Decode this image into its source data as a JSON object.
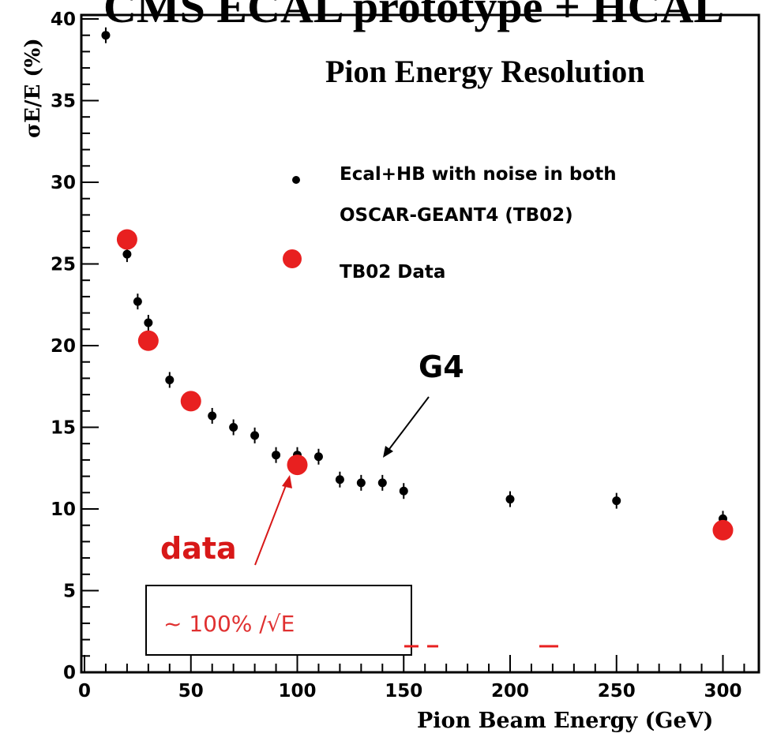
{
  "header_title": "CMS ECAL prototype + HCAL",
  "chart_data": {
    "type": "scatter",
    "title": "Pion Energy Resolution",
    "xlabel": "Pion Beam Energy (GeV)",
    "ylabel": "σE/E (%)",
    "xlim": [
      0,
      315
    ],
    "ylim": [
      0,
      40
    ],
    "x_ticks": [
      "0",
      "50",
      "100",
      "150",
      "200",
      "250",
      "300"
    ],
    "y_ticks": [
      "0",
      "5",
      "10",
      "15",
      "20",
      "25",
      "30",
      "35",
      "40"
    ],
    "series": [
      {
        "name": "Ecal+HB with noise in both OSCAR-GEANT4 (TB02)",
        "color": "#000000",
        "marker": "small-dot-errorbar",
        "x": [
          10,
          20,
          25,
          30,
          40,
          50,
          60,
          70,
          80,
          90,
          100,
          110,
          120,
          130,
          140,
          150,
          200,
          250,
          300
        ],
        "y": [
          39.0,
          25.6,
          22.7,
          21.4,
          17.9,
          16.6,
          15.7,
          15.0,
          14.5,
          13.3,
          13.3,
          13.2,
          11.8,
          11.6,
          11.6,
          11.1,
          10.6,
          10.5,
          9.4
        ]
      },
      {
        "name": "TB02 Data",
        "color": "#e82020",
        "marker": "large-dot",
        "x": [
          20,
          30,
          50,
          100,
          300
        ],
        "y": [
          26.5,
          20.3,
          16.6,
          12.7,
          8.7
        ]
      }
    ],
    "legend": {
      "placement": "top-right",
      "entries": [
        "Ecal+HB with noise in both",
        "OSCAR-GEANT4 (TB02)",
        "TB02 Data"
      ]
    },
    "annotations": {
      "g4_label": "G4",
      "data_label": "data",
      "formula": "~ 100% /√E"
    }
  }
}
